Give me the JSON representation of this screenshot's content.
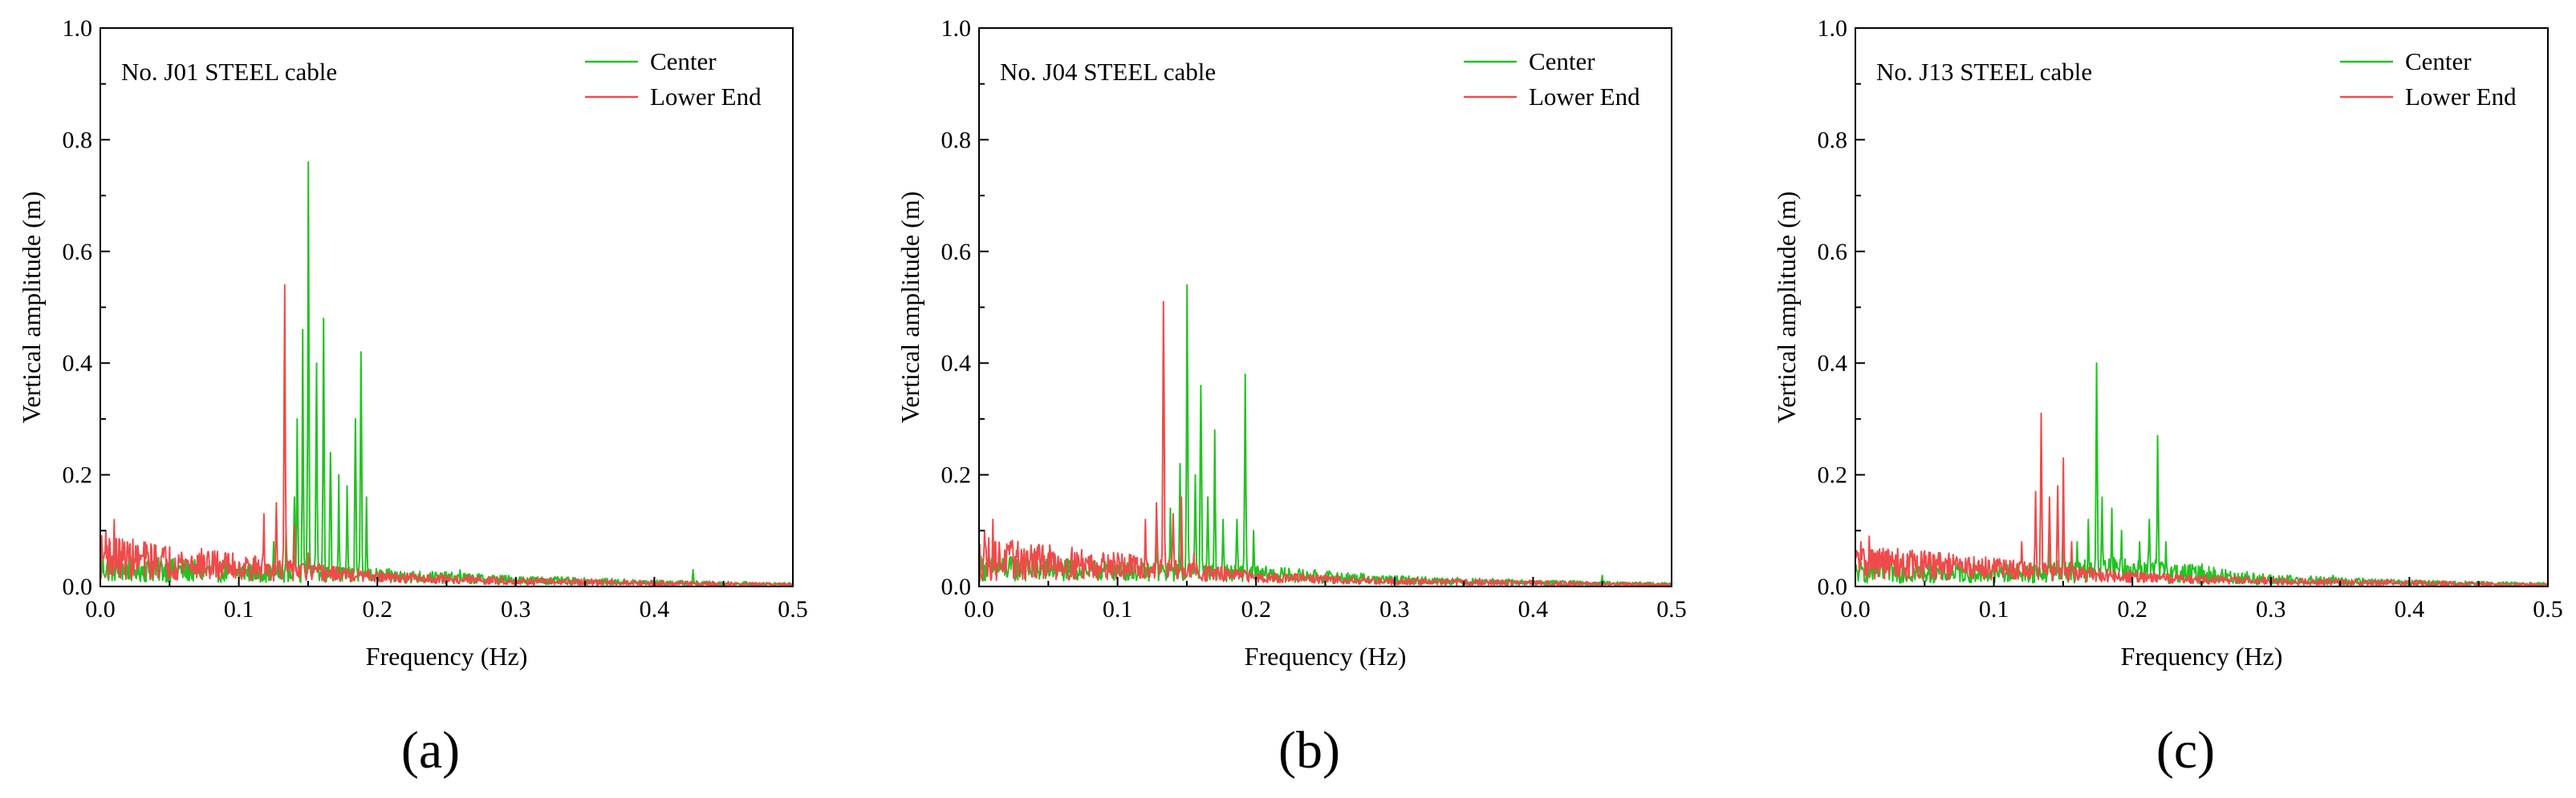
{
  "figure": {
    "colors": {
      "center": "#22c322",
      "lower_end": "#f04a4a",
      "axis": "#000000"
    }
  },
  "chart_data": [
    {
      "type": "line",
      "panel_label": "(a)",
      "title": "No. J01 STEEL cable",
      "xlabel": "Frequency (Hz)",
      "ylabel": "Vertical amplitude (m)",
      "xlim": [
        0,
        0.5
      ],
      "ylim": [
        0,
        1.0
      ],
      "xticks": [
        "0.0",
        "0.1",
        "0.2",
        "0.3",
        "0.4",
        "0.5"
      ],
      "yticks": [
        "0.0",
        "0.2",
        "0.4",
        "0.6",
        "0.8",
        "1.0"
      ],
      "legend_position": "top-right",
      "series": [
        {
          "name": "Center",
          "color": "#22c322",
          "baseline": [
            0.028,
            0.022,
            0.017,
            0.01,
            0.006,
            0.003
          ],
          "noise": [
            0.032,
            0.022,
            0.016,
            0.01,
            0.006,
            0.004
          ],
          "peaks": [
            [
              0.125,
              0.08
            ],
            [
              0.134,
              0.1
            ],
            [
              0.14,
              0.16
            ],
            [
              0.142,
              0.3
            ],
            [
              0.146,
              0.46
            ],
            [
              0.15,
              0.76
            ],
            [
              0.156,
              0.4
            ],
            [
              0.161,
              0.48
            ],
            [
              0.166,
              0.24
            ],
            [
              0.172,
              0.2
            ],
            [
              0.178,
              0.18
            ],
            [
              0.184,
              0.3
            ],
            [
              0.188,
              0.42
            ],
            [
              0.192,
              0.16
            ],
            [
              0.26,
              0.03
            ],
            [
              0.428,
              0.03
            ]
          ]
        },
        {
          "name": "Lower End",
          "color": "#f04a4a",
          "baseline": [
            0.045,
            0.03,
            0.015,
            0.008,
            0.005,
            0.002
          ],
          "noise": [
            0.05,
            0.03,
            0.012,
            0.008,
            0.006,
            0.004
          ],
          "peaks": [
            [
              0.004,
              0.1
            ],
            [
              0.01,
              0.12
            ],
            [
              0.02,
              0.07
            ],
            [
              0.045,
              0.06
            ],
            [
              0.09,
              0.06
            ],
            [
              0.118,
              0.13
            ],
            [
              0.127,
              0.15
            ],
            [
              0.133,
              0.54
            ],
            [
              0.14,
              0.11
            ],
            [
              0.15,
              0.06
            ]
          ]
        }
      ]
    },
    {
      "type": "line",
      "panel_label": "(b)",
      "title": "No. J04 STEEL cable",
      "xlabel": "Frequency (Hz)",
      "ylabel": "Vertical amplitude (m)",
      "xlim": [
        0,
        0.5
      ],
      "ylim": [
        0,
        1.0
      ],
      "xticks": [
        "0.0",
        "0.1",
        "0.2",
        "0.3",
        "0.4",
        "0.5"
      ],
      "yticks": [
        "0.0",
        "0.2",
        "0.4",
        "0.6",
        "0.8",
        "1.0"
      ],
      "legend_position": "top-right",
      "series": [
        {
          "name": "Center",
          "color": "#22c322",
          "baseline": [
            0.028,
            0.024,
            0.02,
            0.01,
            0.006,
            0.003
          ],
          "noise": [
            0.03,
            0.022,
            0.018,
            0.01,
            0.006,
            0.004
          ],
          "peaks": [
            [
              0.128,
              0.1
            ],
            [
              0.138,
              0.14
            ],
            [
              0.145,
              0.22
            ],
            [
              0.15,
              0.54
            ],
            [
              0.156,
              0.2
            ],
            [
              0.16,
              0.36
            ],
            [
              0.165,
              0.16
            ],
            [
              0.17,
              0.28
            ],
            [
              0.176,
              0.12
            ],
            [
              0.186,
              0.12
            ],
            [
              0.192,
              0.38
            ],
            [
              0.198,
              0.1
            ],
            [
              0.45,
              0.02
            ]
          ]
        },
        {
          "name": "Lower End",
          "color": "#f04a4a",
          "baseline": [
            0.042,
            0.032,
            0.015,
            0.008,
            0.005,
            0.002
          ],
          "noise": [
            0.05,
            0.03,
            0.012,
            0.008,
            0.006,
            0.004
          ],
          "peaks": [
            [
              0.004,
              0.1
            ],
            [
              0.01,
              0.12
            ],
            [
              0.02,
              0.07
            ],
            [
              0.05,
              0.06
            ],
            [
              0.1,
              0.06
            ],
            [
              0.12,
              0.12
            ],
            [
              0.128,
              0.15
            ],
            [
              0.133,
              0.51
            ],
            [
              0.14,
              0.13
            ],
            [
              0.146,
              0.16
            ],
            [
              0.155,
              0.06
            ]
          ]
        }
      ]
    },
    {
      "type": "line",
      "panel_label": "(c)",
      "title": "No. J13 STEEL cable",
      "xlabel": "Frequency (Hz)",
      "ylabel": "Vertical amplitude (m)",
      "xlim": [
        0,
        0.5
      ],
      "ylim": [
        0,
        1.0
      ],
      "xticks": [
        "0.0",
        "0.1",
        "0.2",
        "0.3",
        "0.4",
        "0.5"
      ],
      "yticks": [
        "0.0",
        "0.2",
        "0.4",
        "0.6",
        "0.8",
        "1.0"
      ],
      "legend_position": "top-right",
      "series": [
        {
          "name": "Center",
          "color": "#22c322",
          "baseline": [
            0.022,
            0.02,
            0.025,
            0.01,
            0.006,
            0.003
          ],
          "noise": [
            0.025,
            0.02,
            0.03,
            0.012,
            0.006,
            0.004
          ],
          "peaks": [
            [
              0.14,
              0.08
            ],
            [
              0.15,
              0.1
            ],
            [
              0.16,
              0.08
            ],
            [
              0.168,
              0.12
            ],
            [
              0.174,
              0.4
            ],
            [
              0.178,
              0.16
            ],
            [
              0.185,
              0.14
            ],
            [
              0.192,
              0.1
            ],
            [
              0.205,
              0.08
            ],
            [
              0.212,
              0.12
            ],
            [
              0.218,
              0.27
            ],
            [
              0.224,
              0.08
            ],
            [
              0.25,
              0.04
            ],
            [
              0.345,
              0.02
            ]
          ]
        },
        {
          "name": "Lower End",
          "color": "#f04a4a",
          "baseline": [
            0.038,
            0.028,
            0.015,
            0.008,
            0.005,
            0.002
          ],
          "noise": [
            0.04,
            0.025,
            0.012,
            0.008,
            0.006,
            0.004
          ],
          "peaks": [
            [
              0.004,
              0.08
            ],
            [
              0.01,
              0.09
            ],
            [
              0.02,
              0.06
            ],
            [
              0.06,
              0.05
            ],
            [
              0.1,
              0.05
            ],
            [
              0.12,
              0.08
            ],
            [
              0.13,
              0.17
            ],
            [
              0.134,
              0.31
            ],
            [
              0.14,
              0.16
            ],
            [
              0.146,
              0.18
            ],
            [
              0.15,
              0.23
            ],
            [
              0.156,
              0.08
            ]
          ]
        }
      ]
    }
  ]
}
